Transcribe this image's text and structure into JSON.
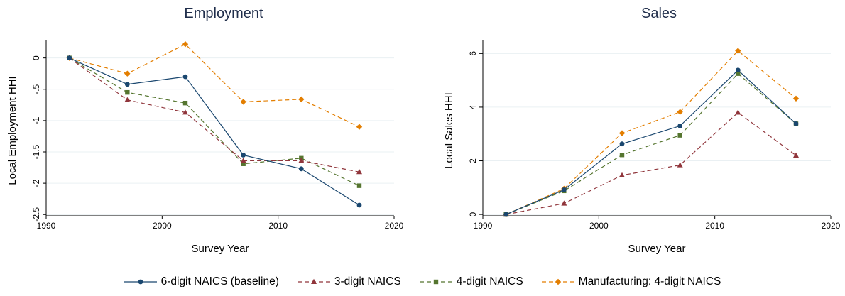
{
  "chart_data": [
    {
      "type": "line",
      "title": "Employment",
      "xlabel": "Survey Year",
      "ylabel": "Local Employment HHI",
      "xlim": [
        1990,
        2020
      ],
      "ylim": [
        -2.5,
        0.2
      ],
      "xticks": [
        1990,
        2000,
        2010,
        2020
      ],
      "yticks": [
        0,
        -0.5,
        -1,
        -1.5,
        -2,
        -2.5
      ],
      "ytick_labels": [
        "0",
        "-.5",
        "-1",
        "-1.5",
        "-2",
        "-2.5"
      ],
      "grid": true,
      "x": [
        1992,
        1997,
        2002,
        2007,
        2012,
        2017
      ],
      "series": [
        {
          "name": "6-digit NAICS (baseline)",
          "values": [
            0,
            -0.42,
            -0.3,
            -1.55,
            -1.77,
            -2.35
          ]
        },
        {
          "name": "3-digit NAICS",
          "values": [
            0,
            -0.67,
            -0.87,
            -1.64,
            -1.64,
            -1.82
          ]
        },
        {
          "name": "4-digit NAICS",
          "values": [
            0,
            -0.55,
            -0.72,
            -1.69,
            -1.6,
            -2.04
          ]
        },
        {
          "name": "Manufacturing: 4-digit NAICS",
          "values": [
            0,
            -0.25,
            0.22,
            -0.7,
            -0.66,
            -1.1
          ]
        }
      ]
    },
    {
      "type": "line",
      "title": "Sales",
      "xlabel": "Survey Year",
      "ylabel": "Local Sales HHI",
      "xlim": [
        1990,
        2020
      ],
      "ylim": [
        0,
        6
      ],
      "xticks": [
        1990,
        2000,
        2010,
        2020
      ],
      "yticks": [
        0,
        2,
        4,
        6
      ],
      "ytick_labels": [
        "0",
        "2",
        "4",
        "6"
      ],
      "grid": true,
      "x": [
        1992,
        1997,
        2002,
        2007,
        2012,
        2017
      ],
      "series": [
        {
          "name": "6-digit NAICS (baseline)",
          "values": [
            0,
            0.92,
            2.63,
            3.3,
            5.38,
            3.38
          ]
        },
        {
          "name": "3-digit NAICS",
          "values": [
            0,
            0.41,
            1.46,
            1.84,
            3.8,
            2.2
          ]
        },
        {
          "name": "4-digit NAICS",
          "values": [
            0,
            0.88,
            2.22,
            2.95,
            5.25,
            3.38
          ]
        },
        {
          "name": "Manufacturing: 4-digit NAICS",
          "values": [
            0,
            0.96,
            3.03,
            3.82,
            6.1,
            4.32
          ]
        }
      ]
    }
  ],
  "legend": {
    "placement": "bottom",
    "items": [
      {
        "label": "6-digit NAICS (baseline)",
        "color": "#1a476f",
        "marker": "circle",
        "dash": "solid"
      },
      {
        "label": "3-digit NAICS",
        "color": "#90353b",
        "marker": "triangle",
        "dash": "dashed"
      },
      {
        "label": "4-digit NAICS",
        "color": "#55752f",
        "marker": "square",
        "dash": "dashed"
      },
      {
        "label": "Manufacturing: 4-digit NAICS",
        "color": "#e37e00",
        "marker": "diamond",
        "dash": "dashed"
      }
    ]
  }
}
